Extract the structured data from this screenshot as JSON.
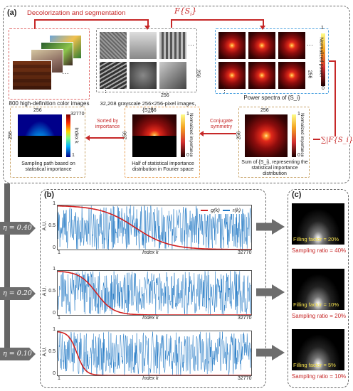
{
  "panel_a": {
    "letter": "(a)",
    "decolorization_label": "Decolorization and segmentation",
    "fs_label": "F{S_i}",
    "color_images_caption": "800 high-definition color images",
    "gray_caption": "32,208 grayscale 256×256-pixel images, {S_i}",
    "gray_dim_x": "256",
    "gray_dim_y": "256",
    "power_caption": "Power spectra of {S_i}",
    "power_cb_label": "Normalized power",
    "power_cb_max": "1",
    "power_cb_min": "0",
    "power_dim_y": "256",
    "sum_symbol": "∑|F{S_i}|",
    "sum_caption": "Sum of {S_i}, representing the statistical importance distribution",
    "sum_cb_label": "Normalized importance",
    "sum_cb_max": "1",
    "sum_cb_min": "0",
    "sum_dim_x": "256",
    "sum_dim_y": "256",
    "conjugate_label": "Conjugate symmetry",
    "half_caption": "Half of statistical importance distribution in Fourier space",
    "half_cb_label": "Normalized importance",
    "half_cb_max": "1",
    "half_cb_min": "0",
    "half_dim_x": "256",
    "half_dim_y": "256",
    "sorted_label": "Sorted by importance",
    "path_caption": "Sampling path based on statistical importance",
    "path_cb_label": "Index k",
    "path_cb_max": "32770",
    "path_cb_min": "1",
    "path_dim_x": "256",
    "path_dim_y": "256",
    "ellipsis": "···",
    "vdots": "⋮"
  },
  "panel_b": {
    "letter": "(b)",
    "legend_g": "g(k)",
    "legend_r": "r(k)",
    "ylabel": "A.U.",
    "xlabel": "Index k",
    "x_min": "1",
    "x_max": "32770",
    "ytick_top": "1",
    "ytick_mid": "0.5",
    "ytick_bot": "0",
    "rows": [
      {
        "eta": "η = 0.40"
      },
      {
        "eta": "η = 0.20"
      },
      {
        "eta": "η = 0.10"
      }
    ],
    "colors": {
      "g": "#d11f1f",
      "r": "#1f77c4"
    }
  },
  "panel_c": {
    "letter": "(c)",
    "rows": [
      {
        "filling": "Filling factor = 20%",
        "sampling": "Sampling ratio = 40%"
      },
      {
        "filling": "Filling factor = 10%",
        "sampling": "Sampling ratio = 20%"
      },
      {
        "filling": "Filling factor = 5%",
        "sampling": "Sampling ratio = 10%"
      }
    ]
  },
  "chart_data": [
    {
      "type": "line",
      "xlabel": "Index k",
      "ylabel": "A.U.",
      "xlim": [
        1,
        32770
      ],
      "ylim": [
        0,
        1
      ],
      "grid": false,
      "legend": "top-right",
      "series": [
        {
          "name": "g(k)",
          "shape": "sigmoid_decay",
          "half_point_fraction": 0.4
        },
        {
          "name": "r(k)",
          "shape": "uniform_random"
        }
      ]
    },
    {
      "type": "line",
      "xlabel": "Index k",
      "ylabel": "A.U.",
      "xlim": [
        1,
        32770
      ],
      "ylim": [
        0,
        1
      ],
      "grid": false,
      "series": [
        {
          "name": "g(k)",
          "shape": "sigmoid_decay",
          "half_point_fraction": 0.2
        },
        {
          "name": "r(k)",
          "shape": "uniform_random"
        }
      ]
    },
    {
      "type": "line",
      "xlabel": "Index k",
      "ylabel": "A.U.",
      "xlim": [
        1,
        32770
      ],
      "ylim": [
        0,
        1
      ],
      "grid": false,
      "series": [
        {
          "name": "g(k)",
          "shape": "sigmoid_decay",
          "half_point_fraction": 0.1
        },
        {
          "name": "r(k)",
          "shape": "uniform_random"
        }
      ]
    }
  ]
}
